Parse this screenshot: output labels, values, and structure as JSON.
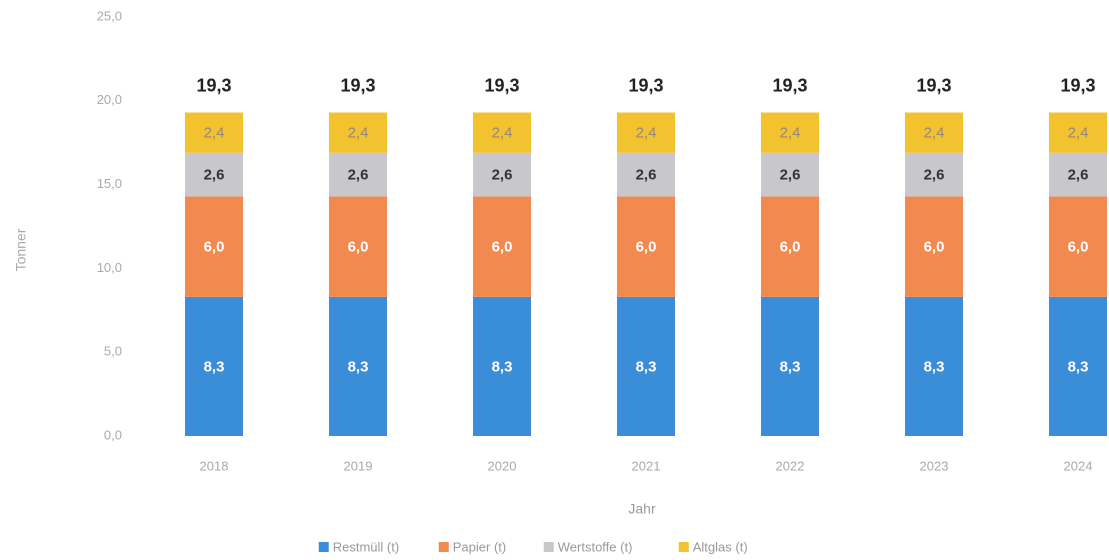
{
  "chart_data": {
    "type": "stacked_bar",
    "y_label": "Tonner",
    "x_label": "Jahr",
    "categories": [
      "2018",
      "2019",
      "2020",
      "2021",
      "2022",
      "2023",
      "2024"
    ],
    "series": [
      {
        "name": "Restmüll (t)",
        "color": "#3a8dd8",
        "label_color": "#ffffff",
        "values": [
          8.3,
          8.3,
          8.3,
          8.3,
          8.3,
          8.3,
          8.3
        ],
        "value_labels": [
          "8,3",
          "8,3",
          "8,3",
          "8,3",
          "8,3",
          "8,3",
          "8,3"
        ]
      },
      {
        "name": "Papier (t)",
        "color": "#f2894e",
        "label_color": "#ffffff",
        "values": [
          6.0,
          6.0,
          6.0,
          6.0,
          6.0,
          6.0,
          6.0
        ],
        "value_labels": [
          "6,0",
          "6,0",
          "6,0",
          "6,0",
          "6,0",
          "6,0",
          "6,0"
        ]
      },
      {
        "name": "Wertstoffe (t)",
        "color": "#c8c8cc",
        "label_color": "#333333",
        "values": [
          2.6,
          2.6,
          2.6,
          2.6,
          2.6,
          2.6,
          2.6
        ],
        "value_labels": [
          "2,6",
          "2,6",
          "2,6",
          "2,6",
          "2,6",
          "2,6",
          "2,6"
        ]
      },
      {
        "name": "Altglas (t)",
        "color": "#f3c22f",
        "label_color": "#8a8a8a",
        "values": [
          2.4,
          2.4,
          2.4,
          2.4,
          2.4,
          2.4,
          2.4
        ],
        "value_labels": [
          "2,4",
          "2,4",
          "2,4",
          "2,4",
          "2,4",
          "2,4",
          "2,4"
        ]
      }
    ],
    "totals": [
      19.3,
      19.3,
      19.3,
      19.3,
      19.3,
      19.3,
      19.3
    ],
    "total_labels": [
      "19,3",
      "19,3",
      "19,3",
      "19,3",
      "19,3",
      "19,3",
      "19,3"
    ],
    "ylim": [
      0,
      25
    ],
    "yticks": [
      {
        "value": 0,
        "label": "0,0"
      },
      {
        "value": 5,
        "label": "5,0"
      },
      {
        "value": 10,
        "label": "10,0"
      },
      {
        "value": 15,
        "label": "15,0"
      },
      {
        "value": 20,
        "label": "20,0"
      },
      {
        "value": 25,
        "label": "25,0"
      }
    ],
    "legend": "bottom"
  }
}
